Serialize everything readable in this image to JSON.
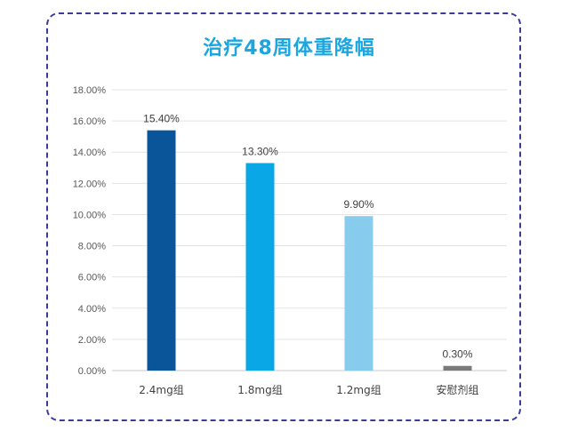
{
  "chart_data": {
    "type": "bar",
    "title": "治疗48周体重降幅",
    "categories": [
      "2.4mg组",
      "1.8mg组",
      "1.2mg组",
      "安慰剂组"
    ],
    "values": [
      15.4,
      13.3,
      9.9,
      0.3
    ],
    "value_labels": [
      "15.40%",
      "13.30%",
      "9.90%",
      "0.30%"
    ],
    "bar_colors": [
      "#0a5499",
      "#0aa7e6",
      "#87ccec",
      "#7a7a7a"
    ],
    "yticks": [
      "0.00%",
      "2.00%",
      "4.00%",
      "6.00%",
      "8.00%",
      "10.00%",
      "12.00%",
      "14.00%",
      "16.00%",
      "18.00%"
    ],
    "ylim": [
      0,
      18
    ],
    "grid": true,
    "xlabel": "",
    "ylabel": ""
  }
}
